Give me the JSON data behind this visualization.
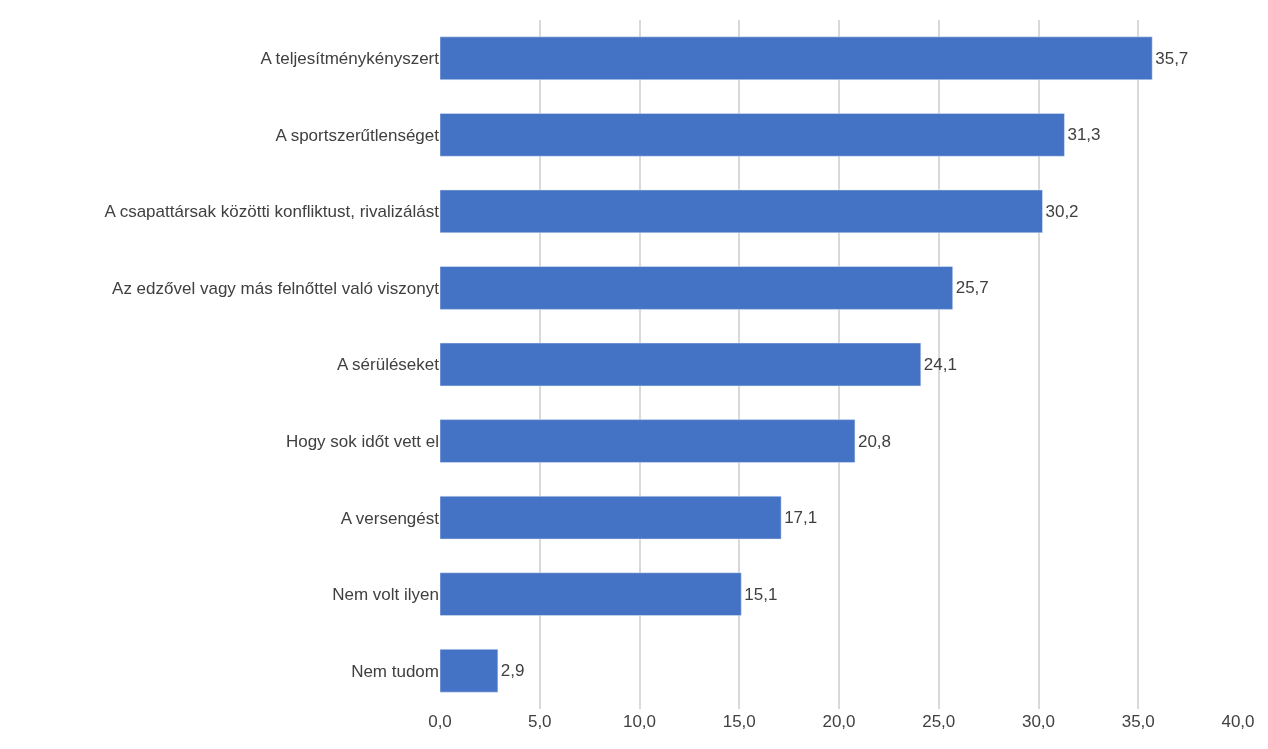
{
  "chart_data": {
    "type": "bar",
    "orientation": "horizontal",
    "categories": [
      "A teljesítménykényszert",
      "A sportszerűtlenséget",
      "A csapattársak közötti konfliktust, rivalizálást",
      "Az edzővel vagy más felnőttel való viszonyt",
      "A sérüléseket",
      "Hogy sok időt vett el",
      "A versengést",
      "Nem volt ilyen",
      "Nem tudom"
    ],
    "values": [
      35.7,
      31.3,
      30.2,
      25.7,
      24.1,
      20.8,
      17.1,
      15.1,
      2.9
    ],
    "value_labels": [
      "35,7",
      "31,3",
      "30,2",
      "25,7",
      "24,1",
      "20,8",
      "17,1",
      "15,1",
      "2,9"
    ],
    "color": "#4472c4",
    "xlim": [
      0,
      40
    ],
    "xticks": [
      {
        "value": 0,
        "label": "0,0"
      },
      {
        "value": 5,
        "label": "5,0"
      },
      {
        "value": 10,
        "label": "10,0"
      },
      {
        "value": 15,
        "label": "15,0"
      },
      {
        "value": 20,
        "label": "20,0"
      },
      {
        "value": 25,
        "label": "25,0"
      },
      {
        "value": 30,
        "label": "30,0"
      },
      {
        "value": 35,
        "label": "35,0"
      },
      {
        "value": 40,
        "label": "40,0"
      }
    ],
    "grid": "x"
  }
}
